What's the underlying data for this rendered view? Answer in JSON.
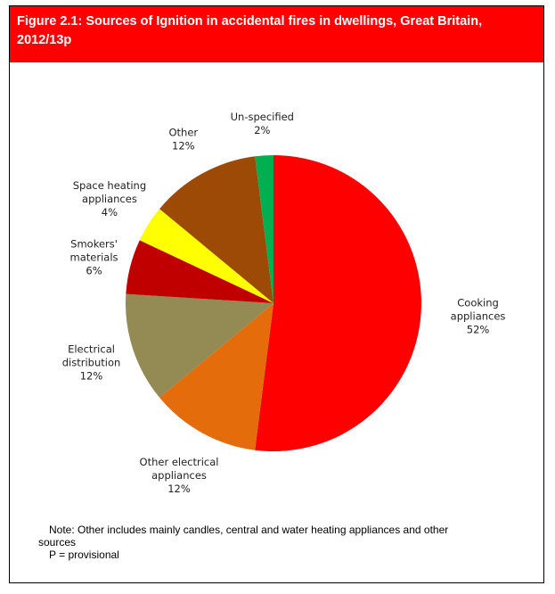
{
  "header": {
    "title": "Figure 2.1:  Sources of Ignition in accidental fires in dwellings, Great Britain, 2012/13p"
  },
  "chart_data": {
    "type": "pie",
    "title": "Figure 2.1:  Sources of Ignition in accidental fires in dwellings, Great Britain, 2012/13p",
    "slices": [
      {
        "name_lines": [
          "Cooking",
          "appliances"
        ],
        "value_label": "52%",
        "value": 52,
        "color": "#ff0000"
      },
      {
        "name_lines": [
          "Other electrical",
          "appliances"
        ],
        "value_label": "12%",
        "value": 12,
        "color": "#e46c0a"
      },
      {
        "name_lines": [
          "Electrical",
          "distribution"
        ],
        "value_label": "12%",
        "value": 12,
        "color": "#948a54"
      },
      {
        "name_lines": [
          "Smokers'",
          "materials"
        ],
        "value_label": "6%",
        "value": 6,
        "color": "#c00000"
      },
      {
        "name_lines": [
          "Space heating",
          "appliances"
        ],
        "value_label": "4%",
        "value": 4,
        "color": "#ffff00"
      },
      {
        "name_lines": [
          "Other"
        ],
        "value_label": "12%",
        "value": 12,
        "color": "#9c4a06"
      },
      {
        "name_lines": [
          "Un-specified"
        ],
        "value_label": "2%",
        "value": 2,
        "color": "#00b050"
      }
    ],
    "start": "12 o'clock",
    "direction": "clockwise",
    "legend": "none"
  },
  "note": {
    "line1": "Note: Other includes mainly candles, central and water heating appliances and other",
    "line2": "sources",
    "line3": "P = provisional"
  }
}
